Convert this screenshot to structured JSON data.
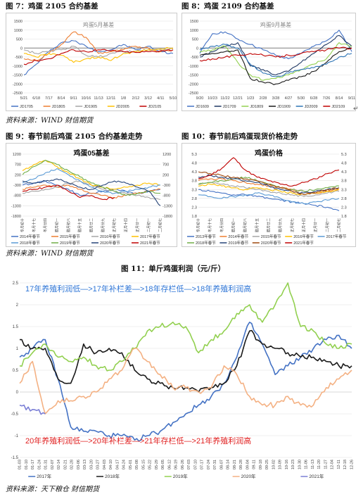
{
  "captions": {
    "fig7": "图 7：鸡蛋 2105 合约基差",
    "fig8": "图 8：鸡蛋 2109 合约基差",
    "fig9": "图 9：春节前后鸡蛋 2105 合约基差走势",
    "fig10": "图 10：春节前后鸡蛋现货价格走势",
    "fig11": "图 11：单斤鸡蛋利润（元/斤）"
  },
  "sources": {
    "wind1": "资料来源：WIND 财信期货",
    "wind2": "资料来源：WIND 财信期货",
    "tianxia": "资料来源：天下粮仓 财信期货"
  },
  "pilcrow": "↵",
  "colors": {
    "c2017": "#4472c4",
    "c2018": "#1a1a1a",
    "c2019": "#92d050",
    "c2020": "#f4b183",
    "c2021": "#7b7fd6",
    "annot_blue": "#2e75d6",
    "annot_red": "#e02020"
  },
  "chart_data": [
    {
      "id": "fig7",
      "type": "line",
      "title": "鸡蛋5月基差",
      "categories": [
        "5/21",
        "6/18",
        "7/17",
        "8/14",
        "9/11",
        "10/16",
        "11/13",
        "12/11",
        "1/8",
        "2/12",
        "3/12",
        "4/11",
        "5/10"
      ],
      "ylim": [
        -2500,
        1500
      ],
      "yticks": [
        1500,
        1000,
        500,
        0,
        -500,
        -1000,
        -1500,
        -2000,
        -2500
      ],
      "series": [
        {
          "name": "JD1705",
          "color": "#4472c4",
          "values": [
            -1500,
            -900,
            -200,
            300,
            400,
            100,
            -200,
            -100,
            200,
            -100,
            100,
            -200,
            -300
          ]
        },
        {
          "name": "JD1805",
          "color": "#ed7d31",
          "values": [
            -600,
            -700,
            -300,
            200,
            900,
            600,
            -300,
            -200,
            -100,
            100,
            0,
            -200,
            -100
          ]
        },
        {
          "name": "JD1905",
          "color": "#a5a5a5",
          "values": [
            -100,
            -300,
            -200,
            -100,
            100,
            -400,
            -500,
            -300,
            -200,
            -200,
            -100,
            -100,
            -50
          ]
        },
        {
          "name": "JD2005",
          "color": "#ffc000",
          "values": [
            -300,
            -500,
            -300,
            -400,
            -800,
            -600,
            -500,
            -700,
            -300,
            -200,
            -100,
            -50,
            0
          ]
        },
        {
          "name": "JD2105",
          "color": "#c00000",
          "values": [
            -900,
            -700,
            -600,
            -300,
            -100,
            -200,
            -100,
            -150,
            -200,
            -250,
            -200,
            -150,
            -100
          ]
        }
      ]
    },
    {
      "id": "fig8",
      "type": "line",
      "title": "鸡蛋9月基差",
      "categories": [
        "9/20",
        "10/23",
        "11/22",
        "12/21",
        "1/23",
        "2/28",
        "3/28",
        "4/27",
        "5/30",
        "6/28",
        "7/26",
        "8/14",
        "9/11"
      ],
      "ylim": [
        -2500,
        1500
      ],
      "yticks": [
        1500,
        1000,
        500,
        0,
        -500,
        -1000,
        -1500,
        -2000,
        -2500
      ],
      "series": [
        {
          "name": "JD1609",
          "color": "#4472c4",
          "values": [
            -300,
            800,
            900,
            500,
            200,
            -100,
            -400,
            -600,
            -300,
            100,
            400,
            1000,
            -200
          ]
        },
        {
          "name": "JD1709",
          "color": "#1f3864",
          "values": [
            -500,
            -200,
            100,
            300,
            -1000,
            -1200,
            -1500,
            -1300,
            -800,
            -300,
            200,
            700,
            100
          ]
        },
        {
          "name": "JD1809",
          "color": "#92d050",
          "values": [
            -200,
            -100,
            100,
            -800,
            -1500,
            -1800,
            -1700,
            -1500,
            -1200,
            -900,
            -600,
            300,
            100
          ]
        },
        {
          "name": "JD1909",
          "color": "#1a1a1a",
          "values": [
            -400,
            -300,
            -200,
            -100,
            -1700,
            -1900,
            -2000,
            -1800,
            -1600,
            -1300,
            -800,
            -200,
            0
          ]
        },
        {
          "name": "JD2009",
          "color": "#2e75b6",
          "values": [
            -100,
            100,
            200,
            0,
            -900,
            -1400,
            -1600,
            -1400,
            -1200,
            -1100,
            -900,
            -500,
            -300
          ]
        },
        {
          "name": "JD2109",
          "color": "#c00000",
          "values": [
            -700,
            -600,
            -500,
            -400,
            -300,
            -400,
            -500,
            -400,
            -300,
            -200,
            -100,
            0,
            0
          ]
        }
      ]
    },
    {
      "id": "fig9",
      "type": "line",
      "title": "鸡蛋05基差",
      "categories": [
        "冬月初十",
        "冬月十七",
        "冬月廿四",
        "腊月初一",
        "腊月初八",
        "腊月十五",
        "腊月廿二",
        "腊月廿九",
        "正月初七",
        "正月十四",
        "正月廿一",
        "二月初一",
        "二月初七"
      ],
      "ylim": [
        -1800,
        1200
      ],
      "yticks": [
        1200,
        700,
        200,
        -300,
        -800,
        -1300,
        -1800
      ],
      "yticks_left": [
        1200,
        700,
        200,
        -300,
        -800,
        -1300,
        -1800
      ],
      "yticks_left_labels": [
        "1200",
        "700",
        "200",
        "-300",
        "-800",
        "-1300",
        "-1800"
      ],
      "yticks_left_show": [
        "",
        "",
        "",
        "",
        "",
        "",
        ""
      ],
      "series": [
        {
          "name": "2014年春节",
          "color": "#4472c4",
          "values": [
            -300,
            -200,
            -100,
            -300,
            -500,
            -800,
            -700,
            -600,
            -500,
            -600,
            -700,
            -600,
            -500
          ]
        },
        {
          "name": "2015年春节",
          "color": "#ed7d31",
          "values": [
            -500,
            -400,
            -300,
            -400,
            -300,
            -500,
            -700,
            -800,
            -900,
            -800,
            -700,
            -600,
            -500
          ]
        },
        {
          "name": "2016年春节",
          "color": "#a5a5a5",
          "values": [
            -700,
            -600,
            -500,
            -400,
            -200,
            -100,
            -300,
            -500,
            -600,
            -700,
            -800,
            -900,
            -1000
          ]
        },
        {
          "name": "2017年春节",
          "color": "#ffc000",
          "values": [
            400,
            700,
            900,
            600,
            300,
            0,
            -300,
            -400,
            -500,
            -400,
            -300,
            -200,
            -300
          ]
        },
        {
          "name": "2018年春节",
          "color": "#5b9bd5",
          "values": [
            -200,
            0,
            300,
            500,
            200,
            -100,
            -400,
            -600,
            -700,
            -600,
            -500,
            -400,
            -300
          ]
        },
        {
          "name": "2019年春节",
          "color": "#70ad47",
          "values": [
            200,
            600,
            900,
            700,
            400,
            100,
            -200,
            -400,
            -600,
            -800,
            -700,
            -600,
            -700
          ]
        },
        {
          "name": "2020年春节",
          "color": "#264478",
          "values": [
            -100,
            -200,
            -100,
            0,
            -200,
            -400,
            -500,
            -300,
            -100,
            -200,
            -400,
            -600,
            -1300
          ]
        },
        {
          "name": "2021年春节",
          "color": "#c00000",
          "values": [
            -600,
            -500,
            -400,
            -300,
            -600,
            -900,
            -800,
            -1000,
            -900,
            null,
            null,
            null,
            null
          ]
        }
      ]
    },
    {
      "id": "fig10",
      "type": "line",
      "title": "鸡蛋价格",
      "categories": [
        "冬月初十",
        "冬月十七",
        "冬月廿四",
        "腊月初一",
        "腊月初八",
        "腊月十五",
        "腊月廿二",
        "腊月廿九",
        "正月初七",
        "正月十四",
        "正月廿一",
        "二月初一",
        "二月初七"
      ],
      "ylim": [
        1.8,
        5.3
      ],
      "yticks": [
        5.3,
        4.8,
        4.3,
        3.8,
        3.3,
        2.8,
        2.3,
        1.8
      ],
      "yticks_left": [
        4.8,
        4.3,
        3.8,
        3.3,
        2.8,
        2.3,
        1.8
      ],
      "series": [
        {
          "name": "2013年春节",
          "color": "#4472c4",
          "values": [
            3.3,
            3.2,
            3.1,
            3.0,
            3.0,
            2.9,
            2.8,
            2.7,
            2.6,
            2.5,
            2.4,
            2.3,
            2.1
          ]
        },
        {
          "name": "2014年春节",
          "color": "#ed7d31",
          "values": [
            3.8,
            3.9,
            3.9,
            3.8,
            3.7,
            3.6,
            3.5,
            3.4,
            3.3,
            3.2,
            3.1,
            3.2,
            3.3
          ]
        },
        {
          "name": "2015年春节",
          "color": "#a5a5a5",
          "values": [
            3.6,
            3.7,
            3.6,
            3.5,
            3.4,
            3.3,
            3.2,
            3.1,
            3.0,
            2.9,
            3.0,
            3.1,
            3.2
          ]
        },
        {
          "name": "2016年春节",
          "color": "#ffc000",
          "values": [
            3.5,
            3.6,
            3.5,
            3.4,
            3.3,
            3.4,
            3.3,
            3.2,
            3.1,
            3.0,
            3.1,
            3.2,
            3.3
          ]
        },
        {
          "name": "2017年春节",
          "color": "#5b9bd5",
          "values": [
            3.0,
            2.9,
            2.8,
            2.9,
            3.0,
            3.1,
            3.0,
            2.8,
            2.6,
            2.5,
            2.6,
            2.7,
            2.8
          ]
        },
        {
          "name": "2018年春节",
          "color": "#70ad47",
          "values": [
            3.6,
            3.7,
            3.8,
            3.9,
            4.0,
            3.8,
            3.6,
            3.4,
            3.3,
            3.2,
            3.3,
            3.4,
            3.5
          ]
        },
        {
          "name": "2019年春节",
          "color": "#264478",
          "values": [
            4.0,
            4.1,
            4.0,
            3.9,
            3.8,
            3.7,
            3.5,
            3.3,
            3.2,
            3.1,
            3.2,
            3.3,
            3.4
          ]
        },
        {
          "name": "2020年春节",
          "color": "#9e480e",
          "values": [
            4.3,
            4.2,
            4.1,
            4.0,
            3.9,
            3.8,
            3.6,
            3.4,
            3.2,
            3.0,
            3.1,
            3.3,
            3.4
          ]
        },
        {
          "name": "2021年春节",
          "color": "#c00000",
          "values": [
            3.9,
            4.1,
            4.5,
            5.1,
            4.4,
            4.0,
            3.8,
            3.6,
            3.5,
            3.7,
            3.9,
            4.2,
            4.4
          ]
        }
      ]
    },
    {
      "id": "fig11",
      "type": "line",
      "title": "",
      "categories": [
        "01-03",
        "01-17",
        "01-31",
        "02-14",
        "02-28",
        "03-13",
        "03-27",
        "04-10",
        "04-24",
        "05-08",
        "05-22",
        "06-05",
        "06-19",
        "07-03",
        "07-17",
        "07-31",
        "08-14",
        "08-28",
        "09-11",
        "09-25",
        "10-09",
        "10-23",
        "11-06",
        "11-20",
        "12-04",
        "12-18",
        "12-26"
      ],
      "xtick_labels": [
        "01-03",
        "01-10",
        "01-17",
        "01-24",
        "01-31",
        "02-07",
        "02-14",
        "02-21",
        "02-28",
        "03-06",
        "03-13",
        "03-20",
        "03-27",
        "04-03",
        "04-10",
        "04-17",
        "04-24",
        "05-01",
        "05-08",
        "05-15",
        "05-22",
        "05-29",
        "06-05",
        "06-12",
        "06-19",
        "06-26",
        "07-03",
        "07-10",
        "07-17",
        "07-24",
        "07-31",
        "08-07",
        "08-14",
        "08-21",
        "08-28",
        "09-04",
        "09-11",
        "09-18",
        "09-25",
        "10-02",
        "10-09",
        "10-16",
        "10-23",
        "10-30",
        "11-06",
        "11-13",
        "11-20",
        "11-27",
        "12-04",
        "12-11",
        "12-18",
        "12-26"
      ],
      "ylim": [
        -1.5,
        2.5
      ],
      "yticks": [
        2.5,
        2,
        1.5,
        1,
        0.5,
        0,
        -0.5,
        -1,
        -1.5
      ],
      "ytick_labels": [
        "2.5",
        "2",
        "1.5",
        "1",
        "0.5",
        "0",
        "-0.5",
        "-1",
        "-1.5"
      ],
      "legend_position": "bottom",
      "series": [
        {
          "name": "2017年",
          "color": "#4472c4",
          "values": [
            0.8,
            1.0,
            1.2,
            0.3,
            -0.8,
            -0.9,
            -0.9,
            -1.0,
            -1.0,
            -1.1,
            -1.0,
            -0.9,
            -0.7,
            -0.5,
            -0.3,
            -0.1,
            0.2,
            0.8,
            1.6,
            1.1,
            0.4,
            0.6,
            0.8,
            1.0,
            1.2,
            1.3,
            1.0
          ]
        },
        {
          "name": "2018年",
          "color": "#1a1a1a",
          "values": [
            1.2,
            1.0,
            1.0,
            0.3,
            0.2,
            1.1,
            0.9,
            1.0,
            0.9,
            0.5,
            0.3,
            0.2,
            0.1,
            0.1,
            0.0,
            0.1,
            0.2,
            0.6,
            1.4,
            1.1,
            1.0,
            0.9,
            0.8,
            0.8,
            0.7,
            0.6,
            0.6
          ]
        },
        {
          "name": "2019年",
          "color": "#92d050",
          "values": [
            0.6,
            0.9,
            1.1,
            0.8,
            0.7,
            0.8,
            0.6,
            0.5,
            0.7,
            1.0,
            1.4,
            1.5,
            1.6,
            1.5,
            0.9,
            1.2,
            1.4,
            1.8,
            2.0,
            1.6,
            2.0,
            2.5,
            1.5,
            1.4,
            1.1,
            1.0,
            1.1
          ]
        },
        {
          "name": "2020年",
          "color": "#f4b183",
          "values": [
            0.2,
            0.7,
            -0.5,
            -0.2,
            -0.2,
            -0.1,
            0.0,
            0.3,
            0.5,
            1.0,
            0.7,
            0.4,
            0.1,
            0.1,
            0.0,
            0.1,
            0.6,
            0.4,
            -0.1,
            -0.3,
            -0.3,
            -0.1,
            -0.3,
            -0.3,
            0.1,
            0.3,
            0.5
          ]
        },
        {
          "name": "2021年",
          "color": "#7b7fd6",
          "values": [
            -0.3,
            -0.4,
            -0.5,
            null,
            null,
            null,
            null,
            null,
            null,
            null,
            null,
            null,
            null,
            null,
            null,
            null,
            null,
            null,
            null,
            null,
            null,
            null,
            null,
            null,
            null,
            null,
            null
          ]
        }
      ],
      "annotations": [
        {
          "text": "17年养殖利润低—>17年补栏差—>18年存栏低—>18年养殖利润高",
          "color": "#2e75d6"
        },
        {
          "text": "20年养殖利润低—>20年补栏差—>21年存栏低—>21年养殖利润高",
          "color": "#e02020"
        }
      ]
    }
  ]
}
